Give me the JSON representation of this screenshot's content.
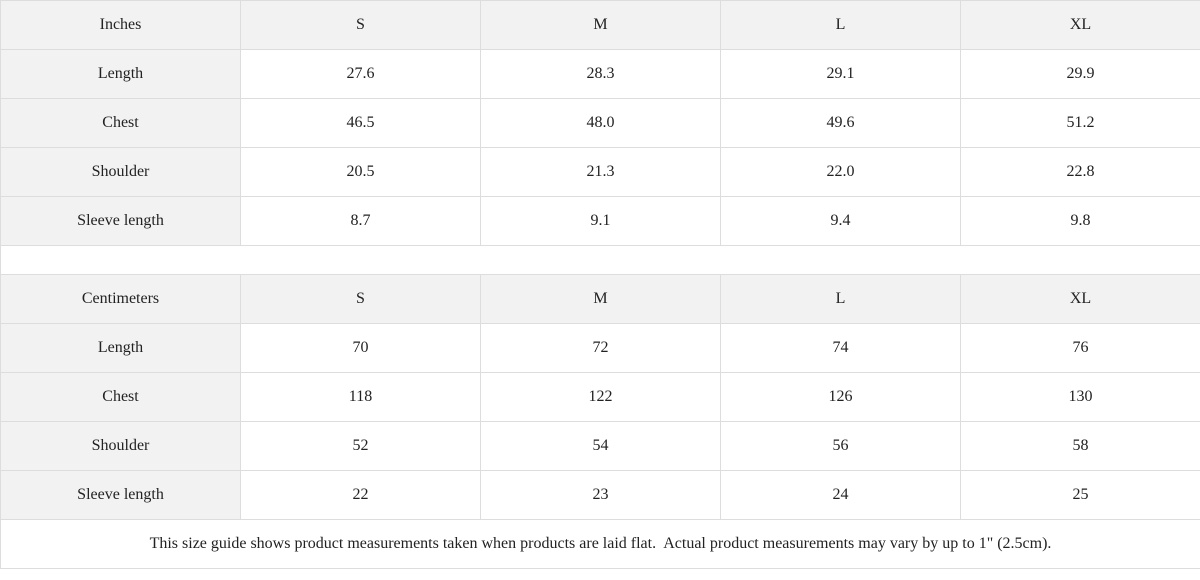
{
  "colors": {
    "header_bg": "#f2f2f2",
    "border": "#dddddd",
    "cell_bg": "#ffffff"
  },
  "inches": {
    "header": [
      "Inches",
      "S",
      "M",
      "L",
      "XL"
    ],
    "rows": [
      [
        "Length",
        "27.6",
        "28.3",
        "29.1",
        "29.9"
      ],
      [
        "Chest",
        "46.5",
        "48.0",
        "49.6",
        "51.2"
      ],
      [
        "Shoulder",
        "20.5",
        "21.3",
        "22.0",
        "22.8"
      ],
      [
        "Sleeve length",
        "8.7",
        "9.1",
        "9.4",
        "9.8"
      ]
    ]
  },
  "centimeters": {
    "header": [
      "Centimeters",
      "S",
      "M",
      "L",
      "XL"
    ],
    "rows": [
      [
        "Length",
        "70",
        "72",
        "74",
        "76"
      ],
      [
        "Chest",
        "118",
        "122",
        "126",
        "130"
      ],
      [
        "Shoulder",
        "52",
        "54",
        "56",
        "58"
      ],
      [
        "Sleeve length",
        "22",
        "23",
        "24",
        "25"
      ]
    ]
  },
  "note": "This size guide shows product measurements taken when products are laid flat.  Actual product measurements may vary by up to 1\" (2.5cm)."
}
